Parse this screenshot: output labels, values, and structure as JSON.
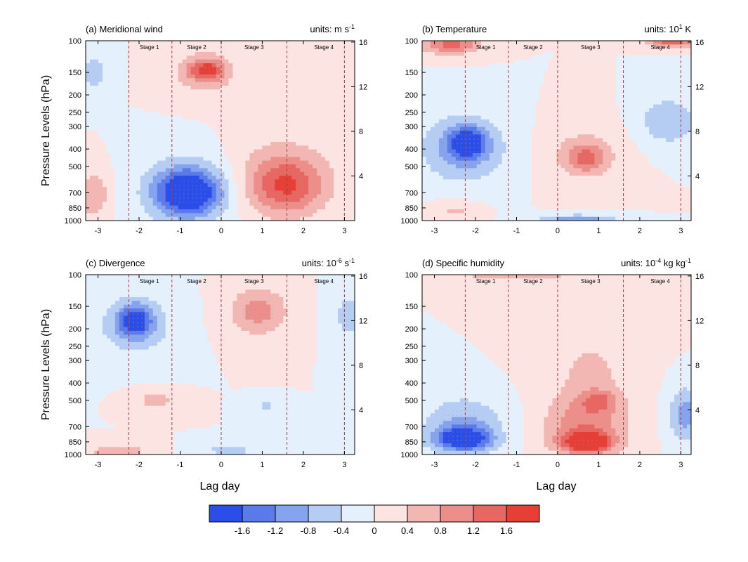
{
  "chart_data": {
    "type": "heatmap",
    "y_axis_label": "Pressure Levels (hPa)",
    "x_axis_label": "Lag day",
    "x_ticks": [
      "-3",
      "-2",
      "-1",
      "0",
      "1",
      "2",
      "3"
    ],
    "x_tick_values": [
      -3,
      -2,
      -1,
      0,
      1,
      2,
      3
    ],
    "xlim": [
      -3.3,
      3.25
    ],
    "y_ticks": [
      "100",
      "150",
      "200",
      "250",
      "300",
      "400",
      "500",
      "700",
      "850",
      "1000"
    ],
    "y_tick_values": [
      100,
      150,
      200,
      250,
      300,
      400,
      500,
      700,
      850,
      1000
    ],
    "ylim": [
      100,
      1000
    ],
    "y_scale": "log",
    "right_ticks": [
      "16",
      "12",
      "8",
      "4"
    ],
    "right_tick_values": [
      16,
      12,
      8,
      4
    ],
    "stage_labels": [
      "Stage 1",
      "Stage 2",
      "Stage 3",
      "Stage 4"
    ],
    "stage_label_x": [
      -1.75,
      -0.6,
      0.8,
      2.5
    ],
    "stage_boundaries": [
      -2.25,
      -1.2,
      0,
      1.6,
      3.0
    ],
    "colorbar": {
      "levels": [
        "-1.6",
        "-1.2",
        "-0.8",
        "-0.4",
        "0",
        "0.4",
        "0.8",
        "1.2",
        "1.6"
      ],
      "colors": [
        "#2b4de8",
        "#5a7be9",
        "#86a3ee",
        "#b6cdf3",
        "#e4f0fb",
        "#fce4e2",
        "#f2b7b3",
        "#ec8f8a",
        "#e76762",
        "#e53f36"
      ]
    },
    "panels": [
      {
        "title": "(a) Meridional wind",
        "units_prefix": "units: m s",
        "units_sup": "-1",
        "units_suffix": "",
        "blobs": [
          {
            "x": -0.4,
            "y": 150,
            "rx": 0.75,
            "ry": 0.28,
            "v": 0.8
          },
          {
            "x": -0.35,
            "y": 145,
            "rx": 0.4,
            "ry": 0.12,
            "v": 1.2
          },
          {
            "x": -0.8,
            "y": 700,
            "rx": 0.75,
            "ry": 0.28,
            "v": -1.6
          },
          {
            "x": -0.85,
            "y": 680,
            "rx": 1.05,
            "ry": 0.42,
            "v": -1.0
          },
          {
            "x": 1.6,
            "y": 650,
            "rx": 0.9,
            "ry": 0.35,
            "v": 1.2
          },
          {
            "x": 1.5,
            "y": 550,
            "rx": 1.2,
            "ry": 0.5,
            "v": 0.6
          },
          {
            "x": -3.1,
            "y": 150,
            "rx": 0.35,
            "ry": 0.25,
            "v": -0.6
          },
          {
            "x": -3.1,
            "y": 720,
            "rx": 0.35,
            "ry": 0.3,
            "v": 0.8
          }
        ]
      },
      {
        "title": "(b) Temperature",
        "units_prefix": "units: 10",
        "units_sup": "1",
        "units_suffix": " K",
        "blobs": [
          {
            "x": -2.2,
            "y": 370,
            "rx": 0.45,
            "ry": 0.2,
            "v": -1.6
          },
          {
            "x": -2.3,
            "y": 400,
            "rx": 1.1,
            "ry": 0.45,
            "v": -0.9
          },
          {
            "x": 0.7,
            "y": 450,
            "rx": 0.5,
            "ry": 0.18,
            "v": 1.0
          },
          {
            "x": 0.6,
            "y": 420,
            "rx": 1.0,
            "ry": 0.4,
            "v": 0.45
          },
          {
            "x": 2.7,
            "y": 280,
            "rx": 0.7,
            "ry": 0.3,
            "v": -0.8
          },
          {
            "x": -2.6,
            "y": 105,
            "rx": 0.7,
            "ry": 0.12,
            "v": 1.4
          },
          {
            "x": 2.8,
            "y": 102,
            "rx": 0.6,
            "ry": 0.06,
            "v": 1.5
          },
          {
            "x": 0.5,
            "y": 990,
            "rx": 0.9,
            "ry": 0.06,
            "v": -1.2
          },
          {
            "x": -2.5,
            "y": 880,
            "rx": 0.6,
            "ry": 0.12,
            "v": 0.5
          }
        ]
      },
      {
        "title": "(c) Divergence",
        "units_prefix": "units: 10",
        "units_sup": "-6",
        "units_suffix": " s",
        "units_sup2": "-1",
        "blobs": [
          {
            "x": -2.1,
            "y": 180,
            "rx": 0.4,
            "ry": 0.2,
            "v": -1.4
          },
          {
            "x": -2.1,
            "y": 190,
            "rx": 0.9,
            "ry": 0.38,
            "v": -0.8
          },
          {
            "x": 0.9,
            "y": 160,
            "rx": 0.7,
            "ry": 0.3,
            "v": 1.0
          },
          {
            "x": -1.6,
            "y": 500,
            "rx": 0.5,
            "ry": 0.12,
            "v": 0.6
          },
          {
            "x": 3.1,
            "y": 170,
            "rx": 0.4,
            "ry": 0.3,
            "v": -0.6
          },
          {
            "x": 1.1,
            "y": 540,
            "rx": 0.35,
            "ry": 0.08,
            "v": -0.5
          },
          {
            "x": -2.5,
            "y": 960,
            "rx": 0.7,
            "ry": 0.08,
            "v": 0.8
          },
          {
            "x": 0.2,
            "y": 950,
            "rx": 0.7,
            "ry": 0.08,
            "v": -0.6
          }
        ]
      },
      {
        "title": "(d) Specific humidity",
        "units_prefix": "units: 10",
        "units_sup": "-4",
        "units_suffix": " kg kg",
        "units_sup2": "-1",
        "blobs": [
          {
            "x": -2.3,
            "y": 820,
            "rx": 0.65,
            "ry": 0.14,
            "v": -1.8
          },
          {
            "x": -2.3,
            "y": 700,
            "rx": 1.0,
            "ry": 0.38,
            "v": -0.9
          },
          {
            "x": 0.7,
            "y": 860,
            "rx": 0.6,
            "ry": 0.12,
            "v": 1.9
          },
          {
            "x": 0.7,
            "y": 700,
            "rx": 1.0,
            "ry": 0.38,
            "v": 1.1
          },
          {
            "x": 1.0,
            "y": 500,
            "rx": 0.45,
            "ry": 0.14,
            "v": 0.8
          },
          {
            "x": 0.8,
            "y": 330,
            "rx": 1.1,
            "ry": 0.55,
            "v": 0.45
          },
          {
            "x": 3.1,
            "y": 600,
            "rx": 0.4,
            "ry": 0.35,
            "v": -1.0
          },
          {
            "x": -1.0,
            "y": 102,
            "rx": 2.2,
            "ry": 0.08,
            "v": 0.5
          }
        ]
      }
    ]
  }
}
